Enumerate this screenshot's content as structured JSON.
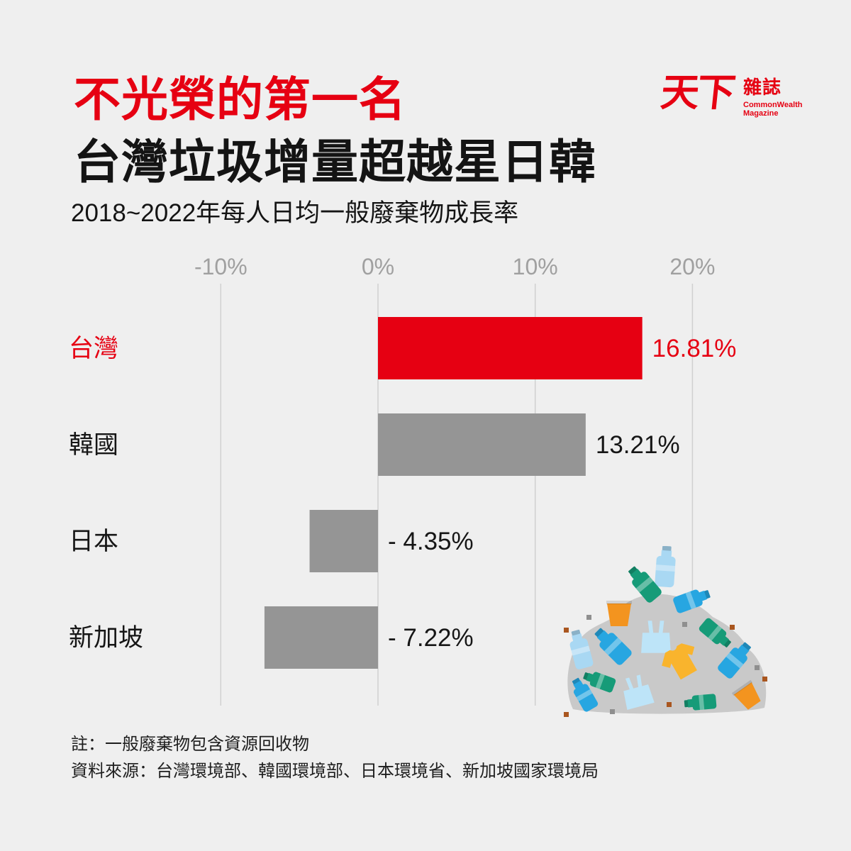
{
  "header": {
    "title_line1": "不光榮的第一名",
    "title_line2": "台灣垃圾增量超越星日韓"
  },
  "logo": {
    "mark": "天下",
    "name_zh": "雜誌",
    "name_en_line1": "CommonWealth",
    "name_en_line2": "Magazine"
  },
  "chart_data": {
    "type": "bar",
    "orientation": "horizontal",
    "title": "2018~2022年每人日均一般廢棄物成長率",
    "categories": [
      "台灣",
      "韓國",
      "日本",
      "新加坡"
    ],
    "values": [
      16.81,
      13.21,
      -4.35,
      -7.22
    ],
    "value_labels": [
      "16.81%",
      "13.21%",
      "- 4.35%",
      "- 7.22%"
    ],
    "x_ticks": [
      -10,
      0,
      10,
      20
    ],
    "x_tick_labels": [
      "-10%",
      "0%",
      "10%",
      "20%"
    ],
    "xlim": [
      -10,
      20
    ],
    "grid": true,
    "tick_position": "top",
    "legend": "none",
    "bar_colors": [
      "#e60012",
      "#959595",
      "#959595",
      "#959595"
    ],
    "label_colors": [
      "#e60012",
      "#161616",
      "#161616",
      "#161616"
    ]
  },
  "footer": {
    "note": "註：一般廢棄物包含資源回收物",
    "source": "資料來源：台灣環境部、韓國環境部、日本環境省、新加坡國家環境局"
  },
  "colors": {
    "accent": "#e60012",
    "background": "#efefef",
    "grid": "#d0d0d0",
    "tick_text": "#a0a0a0",
    "text": "#161616"
  },
  "illustration": {
    "icon": "garbage-pile-icon"
  }
}
